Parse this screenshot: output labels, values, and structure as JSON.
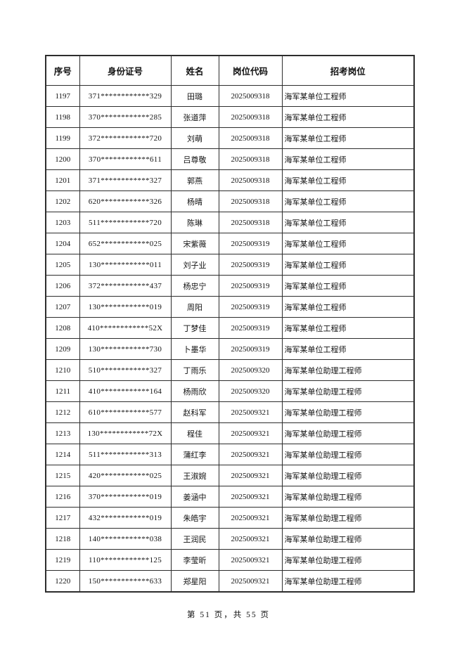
{
  "table": {
    "columns": [
      "序号",
      "身份证号",
      "姓名",
      "岗位代码",
      "招考岗位"
    ],
    "rows": [
      [
        "1197",
        "371************329",
        "田璐",
        "2025009318",
        "海军某单位工程师"
      ],
      [
        "1198",
        "370************285",
        "张道萍",
        "2025009318",
        "海军某单位工程师"
      ],
      [
        "1199",
        "372************720",
        "刘萌",
        "2025009318",
        "海军某单位工程师"
      ],
      [
        "1200",
        "370************611",
        "吕尊敬",
        "2025009318",
        "海军某单位工程师"
      ],
      [
        "1201",
        "371************327",
        "郭燕",
        "2025009318",
        "海军某单位工程师"
      ],
      [
        "1202",
        "620************326",
        "杨晴",
        "2025009318",
        "海军某单位工程师"
      ],
      [
        "1203",
        "511************720",
        "陈琳",
        "2025009318",
        "海军某单位工程师"
      ],
      [
        "1204",
        "652************025",
        "宋紫薇",
        "2025009319",
        "海军某单位工程师"
      ],
      [
        "1205",
        "130************011",
        "刘子业",
        "2025009319",
        "海军某单位工程师"
      ],
      [
        "1206",
        "372************437",
        "杨忠宁",
        "2025009319",
        "海军某单位工程师"
      ],
      [
        "1207",
        "130************019",
        "周阳",
        "2025009319",
        "海军某单位工程师"
      ],
      [
        "1208",
        "410************52X",
        "丁梦佳",
        "2025009319",
        "海军某单位工程师"
      ],
      [
        "1209",
        "130************730",
        "卜墨华",
        "2025009319",
        "海军某单位工程师"
      ],
      [
        "1210",
        "510************327",
        "丁雨乐",
        "2025009320",
        "海军某单位助理工程师"
      ],
      [
        "1211",
        "410************164",
        "杨雨欣",
        "2025009320",
        "海军某单位助理工程师"
      ],
      [
        "1212",
        "610************577",
        "赵科军",
        "2025009321",
        "海军某单位助理工程师"
      ],
      [
        "1213",
        "130************72X",
        "程佳",
        "2025009321",
        "海军某单位助理工程师"
      ],
      [
        "1214",
        "511************313",
        "蒲红李",
        "2025009321",
        "海军某单位助理工程师"
      ],
      [
        "1215",
        "420************025",
        "王淑婉",
        "2025009321",
        "海军某单位助理工程师"
      ],
      [
        "1216",
        "370************019",
        "姜涵中",
        "2025009321",
        "海军某单位助理工程师"
      ],
      [
        "1217",
        "432************019",
        "朱皓宇",
        "2025009321",
        "海军某单位助理工程师"
      ],
      [
        "1218",
        "140************038",
        "王润民",
        "2025009321",
        "海军某单位助理工程师"
      ],
      [
        "1219",
        "110************125",
        "李莹昕",
        "2025009321",
        "海军某单位助理工程师"
      ],
      [
        "1220",
        "150************633",
        "郑星阳",
        "2025009321",
        "海军某单位助理工程师"
      ]
    ]
  },
  "footer": {
    "page_info": "第 51 页，共 55 页"
  }
}
